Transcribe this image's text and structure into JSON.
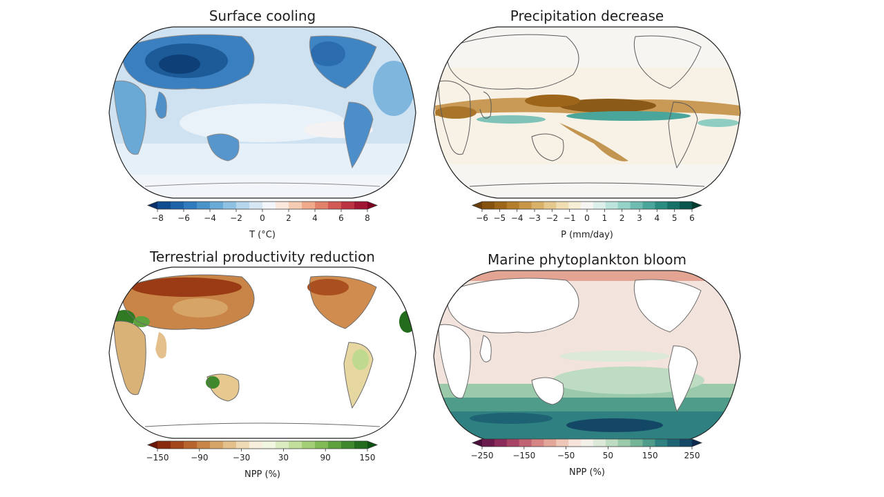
{
  "panels": [
    {
      "title": "Surface cooling",
      "colorbar": {
        "label": "T (°C)",
        "ticks": [
          "−8",
          "−6",
          "−4",
          "−2",
          "0",
          "2",
          "4",
          "6",
          "8"
        ],
        "colors": [
          "#08306b",
          "#0f4b8f",
          "#1c63a8",
          "#2f7bbd",
          "#4a93c9",
          "#6aaad6",
          "#8fc1e2",
          "#b5d6ec",
          "#d6e7f3",
          "#f2f6fa",
          "#fbe7dc",
          "#f6cbb3",
          "#f0a98a",
          "#e3826a",
          "#d35a54",
          "#bc3343",
          "#a01633",
          "#7f0020"
        ]
      }
    },
    {
      "title": "Precipitation decrease",
      "colorbar": {
        "label": "P (mm/day)",
        "ticks": [
          "−6",
          "−5",
          "−4",
          "−3",
          "−2",
          "−1",
          "0",
          "1",
          "2",
          "3",
          "4",
          "5",
          "6"
        ],
        "colors": [
          "#6b3d08",
          "#84510f",
          "#9c6519",
          "#b37d2b",
          "#c79646",
          "#d8b067",
          "#e6c98c",
          "#f0ddb1",
          "#f7eed6",
          "#f6f5f1",
          "#dcefeb",
          "#bce3dc",
          "#95d2c8",
          "#6fbdb2",
          "#4aa69a",
          "#2a8b80",
          "#167066",
          "#08564d",
          "#003c30"
        ]
      }
    },
    {
      "title": "Terrestrial productivity reduction",
      "colorbar": {
        "label": "NPP (%)",
        "ticks": [
          "−150",
          "−90",
          "−30",
          "30",
          "90",
          "150"
        ],
        "colors": [
          "#6b1606",
          "#8a2a0c",
          "#a3461c",
          "#b8642f",
          "#c98547",
          "#d7a467",
          "#e3c08c",
          "#eedab5",
          "#f7efdc",
          "#f1f6e0",
          "#dcecc1",
          "#c2e09c",
          "#a3cf76",
          "#80bb56",
          "#5ea23d",
          "#3f882b",
          "#246c1d",
          "#0e5212"
        ]
      }
    },
    {
      "title": "Marine phytoplankton bloom",
      "colorbar": {
        "label": "NPP (%)",
        "ticks": [
          "−250",
          "−150",
          "−50",
          "50",
          "150",
          "250"
        ],
        "colors": [
          "#4a0d3c",
          "#6b1a4d",
          "#8b2c5a",
          "#a84566",
          "#c06373",
          "#d48584",
          "#e3a79a",
          "#eec7b8",
          "#f6e3da",
          "#f3efe9",
          "#dde9d8",
          "#bedcc2",
          "#9acaa9",
          "#75b597",
          "#4e9c89",
          "#2f8080",
          "#1d6374",
          "#144766",
          "#0c2a4f"
        ]
      }
    }
  ]
}
